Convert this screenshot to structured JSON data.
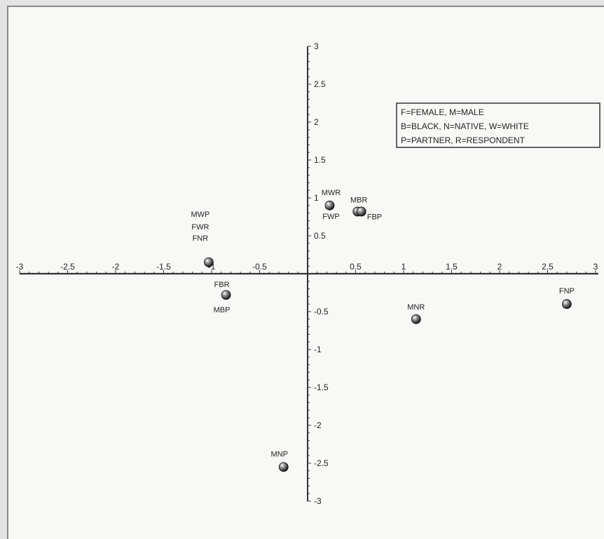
{
  "chart_data": {
    "type": "scatter",
    "title": "",
    "xlabel": "",
    "ylabel": "",
    "xlim": [
      -3,
      3
    ],
    "ylim": [
      -3,
      3
    ],
    "grid": false,
    "x_ticks": [
      "-3",
      "-2.5",
      "-2",
      "-1.5",
      "-1",
      "-0.5",
      "0.5",
      "1",
      "1.5",
      "2",
      "2.5",
      "3"
    ],
    "x_tick_values": [
      -3,
      -2.5,
      -2,
      -1.5,
      -1,
      -0.5,
      0.5,
      1,
      1.5,
      2,
      2.5,
      3
    ],
    "y_ticks": [
      "3",
      "2.5",
      "2",
      "1.5",
      "1",
      "0.5",
      "-0.5",
      "-1",
      "-1.5",
      "-2",
      "-2.5",
      "-3"
    ],
    "y_tick_values": [
      3,
      2.5,
      2,
      1.5,
      1,
      0.5,
      -0.5,
      -1,
      -1.5,
      -2,
      -2.5,
      -3
    ],
    "legend": {
      "placement": "top-right",
      "lines": [
        "F=FEMALE, M=MALE",
        "B=BLACK, N=NATIVE, W=WHITE",
        "P=PARTNER, R=RESPONDENT"
      ]
    },
    "points": [
      {
        "x": -1.03,
        "y": 0.15,
        "labels": [
          "MWP",
          "FWR",
          "FNR"
        ]
      },
      {
        "x": -0.85,
        "y": -0.28,
        "labels": [
          "FBR",
          "MBP"
        ]
      },
      {
        "x": 0.23,
        "y": 0.9,
        "labels": [
          "MWR",
          "FWP"
        ]
      },
      {
        "x": 0.52,
        "y": 0.82,
        "labels": [
          "MBR"
        ]
      },
      {
        "x": 0.56,
        "y": 0.82,
        "labels": [
          "FBP"
        ]
      },
      {
        "x": 1.13,
        "y": -0.6,
        "labels": [
          "MNR"
        ]
      },
      {
        "x": 2.7,
        "y": -0.4,
        "labels": [
          "FNP"
        ]
      },
      {
        "x": -0.25,
        "y": -2.55,
        "labels": [
          "MNP"
        ]
      }
    ]
  }
}
